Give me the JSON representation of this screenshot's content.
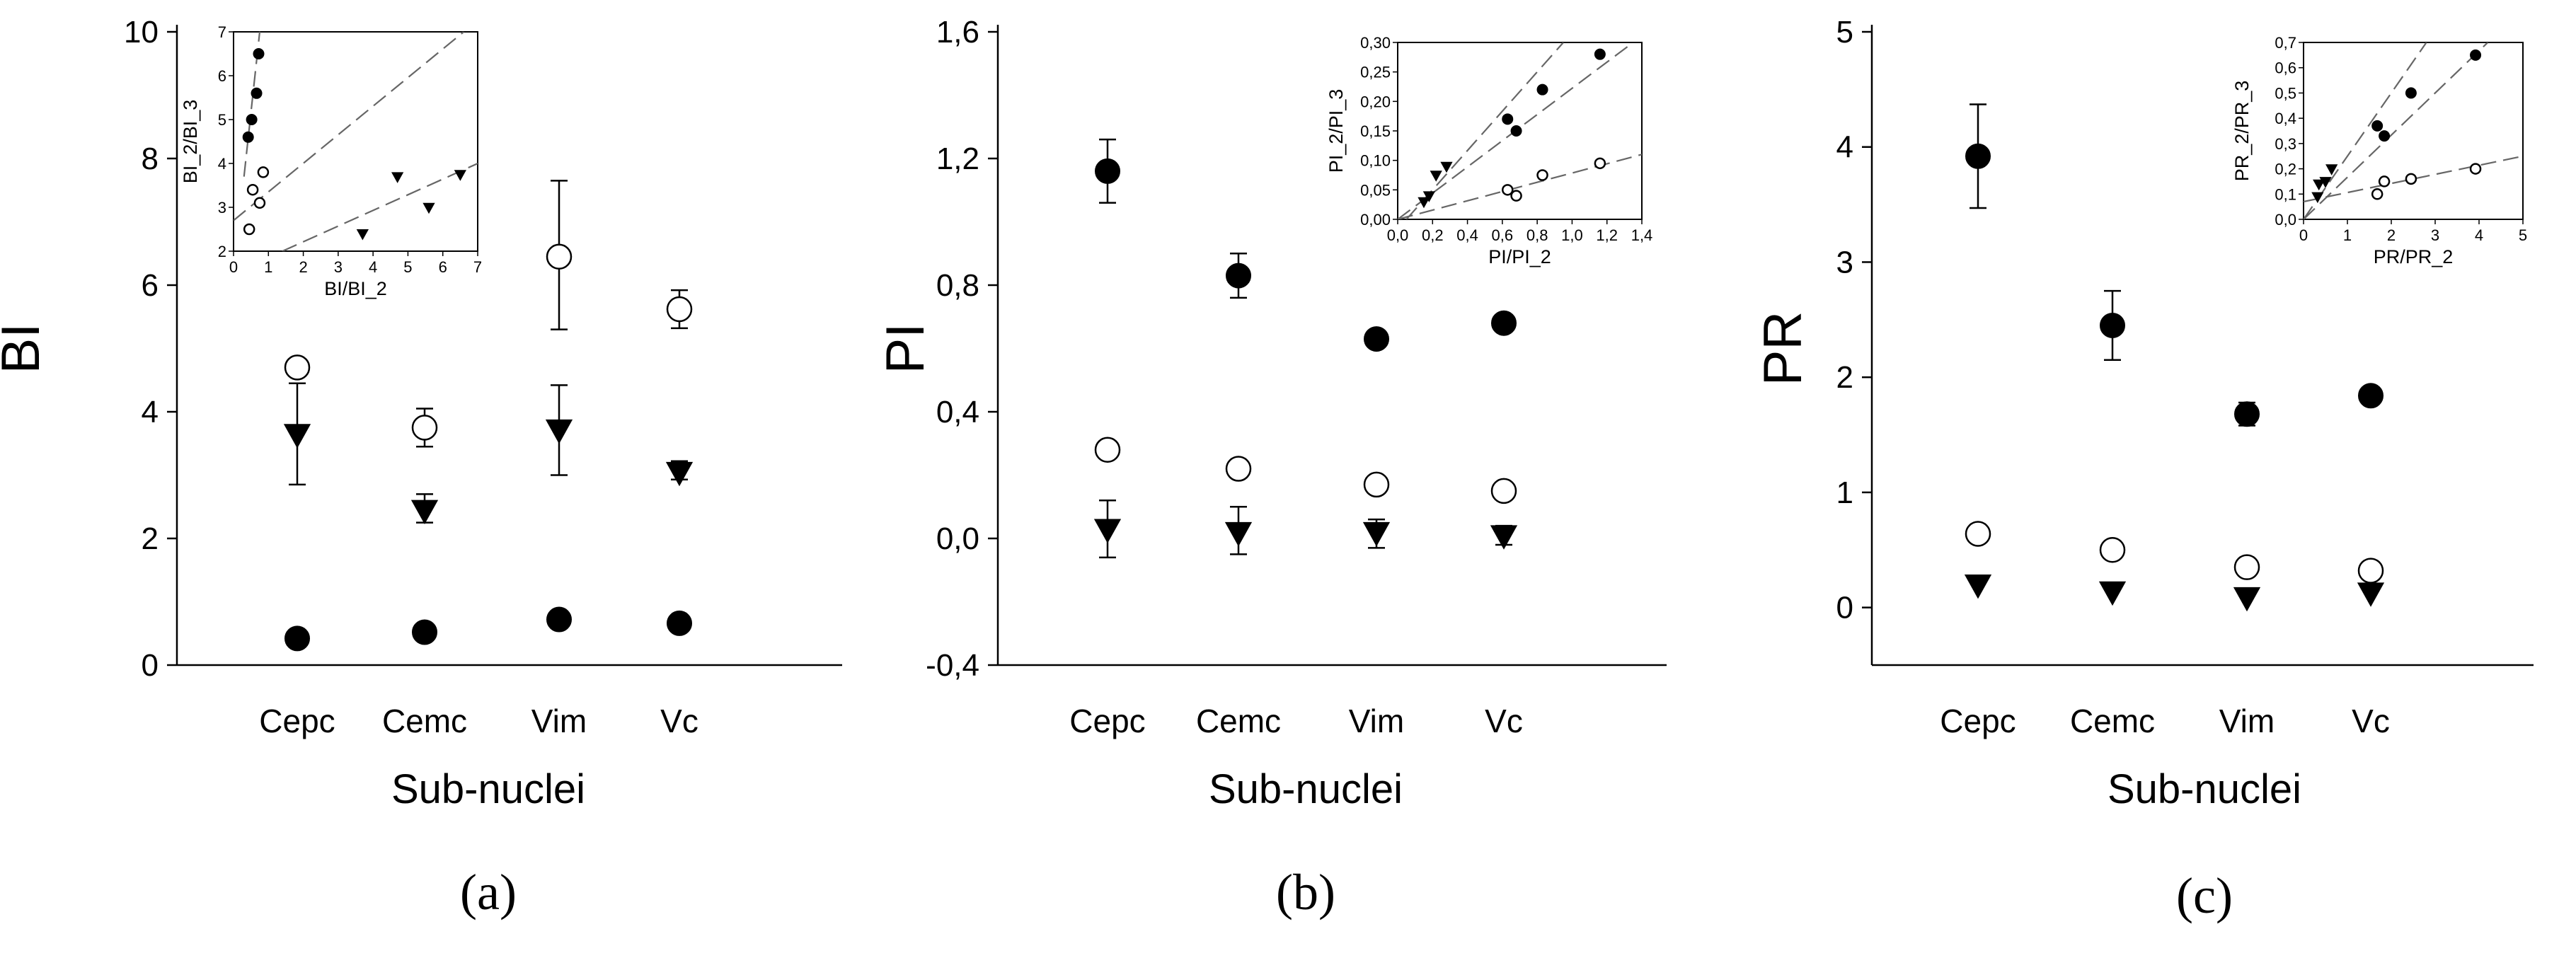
{
  "chart_data": [
    {
      "type": "scatter",
      "panel_label": "(a)",
      "ylabel": "BI",
      "xlabel": "Sub-nuclei",
      "categories": [
        "Cepc",
        "Cemc",
        "Vim",
        "Vc"
      ],
      "ylim": [
        0,
        10
      ],
      "yticks": [
        "0",
        "2",
        "4",
        "6",
        "8",
        "10"
      ],
      "series": [
        {
          "marker": "open-circle",
          "values": [
            4.7,
            3.75,
            6.45,
            5.62
          ],
          "err_up": [
            0,
            0.3,
            1.2,
            0.3
          ],
          "err_down": [
            0,
            0.3,
            1.15,
            0.3
          ]
        },
        {
          "marker": "filled-triangle",
          "values": [
            3.65,
            2.45,
            3.72,
            3.05
          ],
          "err_up": [
            0.8,
            0.25,
            0.7,
            0.17
          ],
          "err_down": [
            0.8,
            0.2,
            0.72,
            0.12
          ]
        },
        {
          "marker": "filled-circle",
          "values": [
            0.42,
            0.52,
            0.72,
            0.66
          ],
          "err_up": [
            0,
            0,
            0,
            0
          ],
          "err_down": [
            0,
            0,
            0,
            0
          ]
        }
      ],
      "inset": {
        "xlabel": "BI/BI_2",
        "ylabel": "BI_2/BI_3",
        "xlim": [
          0,
          7
        ],
        "ylim": [
          2,
          7
        ],
        "xticks": [
          "0",
          "1",
          "2",
          "3",
          "4",
          "5",
          "6",
          "7"
        ],
        "yticks": [
          "2",
          "3",
          "4",
          "5",
          "6",
          "7"
        ],
        "points": [
          {
            "marker": "filled-circle",
            "x": [
              0.42,
              0.52,
              0.66,
              0.72
            ],
            "y": [
              4.6,
              5.0,
              5.6,
              6.5
            ]
          },
          {
            "marker": "open-circle",
            "x": [
              0.45,
              0.55,
              0.75,
              0.85
            ],
            "y": [
              2.5,
              3.4,
              3.1,
              3.8
            ]
          },
          {
            "marker": "filled-triangle",
            "x": [
              3.7,
              4.7,
              5.6,
              6.5
            ],
            "y": [
              2.4,
              3.7,
              3.0,
              3.75
            ]
          }
        ],
        "lines": [
          {
            "x": [
              0,
              6.6
            ],
            "y": [
              2.7,
              7
            ]
          },
          {
            "x": [
              0.3,
              0.75
            ],
            "y": [
              3.7,
              7
            ]
          },
          {
            "x": [
              1.4,
              7
            ],
            "y": [
              2,
              4.0
            ]
          }
        ]
      }
    },
    {
      "type": "scatter",
      "panel_label": "(b)",
      "ylabel": "PI",
      "xlabel": "Sub-nuclei",
      "categories": [
        "Cepc",
        "Cemc",
        "Vim",
        "Vc"
      ],
      "ylim": [
        -0.4,
        1.6
      ],
      "yticks": [
        "-0,4",
        "0,0",
        "0,4",
        "0,8",
        "1,2",
        "1,6"
      ],
      "series": [
        {
          "marker": "filled-circle",
          "values": [
            1.16,
            0.83,
            0.63,
            0.68
          ],
          "err_up": [
            0.1,
            0.07,
            0.02,
            0.02
          ],
          "err_down": [
            0.1,
            0.07,
            0.02,
            0.02
          ]
        },
        {
          "marker": "open-circle",
          "values": [
            0.28,
            0.22,
            0.17,
            0.15
          ],
          "err_up": [
            0,
            0,
            0,
            0
          ],
          "err_down": [
            0,
            0,
            0,
            0
          ]
        },
        {
          "marker": "filled-triangle",
          "values": [
            0.03,
            0.02,
            0.02,
            0.01
          ],
          "err_up": [
            0.09,
            0.08,
            0.04,
            0.03
          ],
          "err_down": [
            0.09,
            0.07,
            0.05,
            0.03
          ]
        }
      ],
      "inset": {
        "xlabel": "PI/PI_2",
        "ylabel": "PI_2/PI_3",
        "xlim": [
          0,
          1.4
        ],
        "ylim": [
          0,
          0.3
        ],
        "xticks": [
          "0,0",
          "0,2",
          "0,4",
          "0,6",
          "0,8",
          "1,0",
          "1,2",
          "1,4"
        ],
        "yticks": [
          "0,00",
          "0,05",
          "0,10",
          "0,15",
          "0,20",
          "0,25",
          "0,30"
        ],
        "points": [
          {
            "marker": "filled-circle",
            "x": [
              0.63,
              0.68,
              0.83,
              1.16
            ],
            "y": [
              0.17,
              0.15,
              0.22,
              0.28
            ]
          },
          {
            "marker": "open-circle",
            "x": [
              0.63,
              0.68,
              0.83,
              1.16
            ],
            "y": [
              0.05,
              0.04,
              0.075,
              0.095
            ]
          },
          {
            "marker": "filled-triangle",
            "x": [
              0.15,
              0.18,
              0.22,
              0.28
            ],
            "y": [
              0.03,
              0.04,
              0.075,
              0.09
            ]
          }
        ],
        "lines": [
          {
            "x": [
              0.05,
              0.95
            ],
            "y": [
              0,
              0.3
            ]
          },
          {
            "x": [
              0,
              1.35
            ],
            "y": [
              0,
              0.3
            ]
          },
          {
            "x": [
              0,
              1.4
            ],
            "y": [
              0,
              0.11
            ]
          }
        ]
      }
    },
    {
      "type": "scatter",
      "panel_label": "(c)",
      "ylabel": "PR",
      "xlabel": "Sub-nuclei",
      "categories": [
        "Cepc",
        "Cemc",
        "Vim",
        "Vc"
      ],
      "ylim": [
        -0.5,
        5
      ],
      "yticks": [
        "0",
        "1",
        "2",
        "3",
        "4",
        "5"
      ],
      "series": [
        {
          "marker": "filled-circle",
          "values": [
            3.92,
            2.45,
            1.68,
            1.84
          ],
          "err_up": [
            0.45,
            0.3,
            0.1,
            0.05
          ],
          "err_down": [
            0.45,
            0.3,
            0.1,
            0.05
          ]
        },
        {
          "marker": "open-circle",
          "values": [
            0.64,
            0.5,
            0.35,
            0.32
          ],
          "err_up": [
            0,
            0,
            0,
            0
          ],
          "err_down": [
            0,
            0,
            0,
            0
          ]
        },
        {
          "marker": "filled-triangle",
          "values": [
            0.2,
            0.14,
            0.09,
            0.13
          ],
          "err_up": [
            0,
            0,
            0,
            0
          ],
          "err_down": [
            0,
            0,
            0,
            0
          ]
        }
      ],
      "inset": {
        "xlabel": "PR/PR_2",
        "ylabel": "PR_2/PR_3",
        "xlim": [
          0,
          5
        ],
        "ylim": [
          0,
          0.7
        ],
        "xticks": [
          "0",
          "1",
          "2",
          "3",
          "4",
          "5"
        ],
        "yticks": [
          "0,0",
          "0,1",
          "0,2",
          "0,3",
          "0,4",
          "0,5",
          "0,6",
          "0,7"
        ],
        "points": [
          {
            "marker": "filled-circle",
            "x": [
              1.68,
              1.84,
              2.45,
              3.92
            ],
            "y": [
              0.37,
              0.33,
              0.5,
              0.65
            ]
          },
          {
            "marker": "open-circle",
            "x": [
              1.68,
              1.84,
              2.45,
              3.92
            ],
            "y": [
              0.1,
              0.15,
              0.16,
              0.2
            ]
          },
          {
            "marker": "filled-triangle",
            "x": [
              0.32,
              0.35,
              0.5,
              0.64
            ],
            "y": [
              0.09,
              0.14,
              0.15,
              0.2
            ]
          }
        ],
        "lines": [
          {
            "x": [
              0,
              4.2
            ],
            "y": [
              0,
              0.7
            ]
          },
          {
            "x": [
              0,
              2.8
            ],
            "y": [
              0,
              0.7
            ]
          },
          {
            "x": [
              0,
              5
            ],
            "y": [
              0.07,
              0.25
            ]
          }
        ]
      }
    }
  ]
}
